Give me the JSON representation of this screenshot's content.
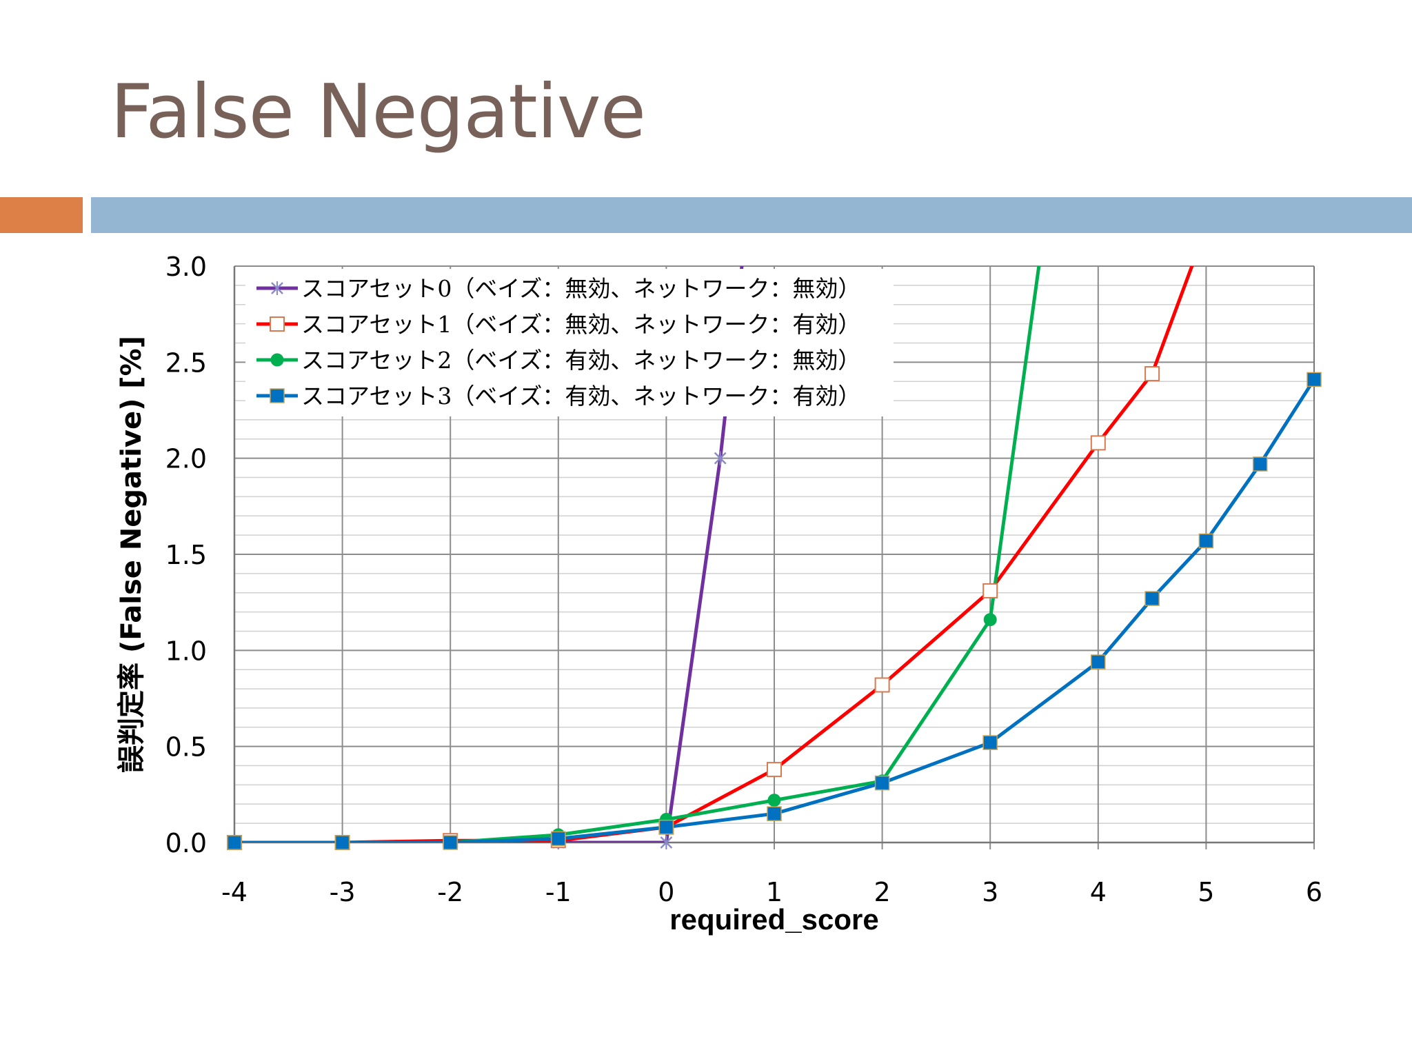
{
  "slide": {
    "title": "False Negative",
    "accent_colors": {
      "orange": "#dd8047",
      "blue": "#94b6d2",
      "title": "#776159"
    }
  },
  "chart_data": {
    "type": "line",
    "xlabel": "required_score",
    "ylabel": "誤判定率 (False Negative) [%]",
    "xlim": [
      -4,
      6
    ],
    "ylim": [
      0,
      3.0
    ],
    "x_ticks": [
      "-4",
      "-3",
      "-2",
      "-1",
      "0",
      "1",
      "2",
      "3",
      "4",
      "5",
      "6"
    ],
    "y_ticks": [
      "0.0",
      "0.5",
      "1.0",
      "1.5",
      "2.0",
      "2.5",
      "3.0"
    ],
    "grid": true,
    "legend_position": "top-left",
    "series": [
      {
        "name": "スコアセット0（ベイズ：無効、ネットワーク：無効）",
        "color": "#7030a0",
        "marker": "x",
        "x": [
          -4,
          -3,
          -2,
          -1,
          0,
          0.5,
          1
        ],
        "y": [
          0.0,
          0.0,
          0.0,
          0.0,
          0.0,
          2.0,
          4.5
        ]
      },
      {
        "name": "スコアセット1（ベイズ：無効、ネットワーク：有効）",
        "color": "#ff0000",
        "marker": "square-open",
        "x": [
          -4,
          -3,
          -2,
          -1,
          0,
          1,
          2,
          3,
          4,
          4.5,
          5
        ],
        "y": [
          0.0,
          0.0,
          0.01,
          0.01,
          0.08,
          0.38,
          0.82,
          1.31,
          2.08,
          2.44,
          3.2
        ]
      },
      {
        "name": "スコアセット2（ベイズ：有効、ネットワーク：無効）",
        "color": "#00b050",
        "marker": "circle",
        "x": [
          -4,
          -3,
          -2,
          -1,
          0,
          1,
          2,
          3,
          3.5
        ],
        "y": [
          0.0,
          0.0,
          0.0,
          0.04,
          0.12,
          0.22,
          0.32,
          1.16,
          3.2
        ]
      },
      {
        "name": "スコアセット3（ベイズ：有効、ネットワーク：有効）",
        "color": "#0070c0",
        "marker": "square",
        "x": [
          -4,
          -3,
          -2,
          -1,
          0,
          1,
          2,
          3,
          4,
          4.5,
          5,
          5.5,
          6
        ],
        "y": [
          0.0,
          0.0,
          0.0,
          0.02,
          0.08,
          0.15,
          0.31,
          0.52,
          0.94,
          1.27,
          1.57,
          1.97,
          2.41
        ]
      }
    ]
  }
}
